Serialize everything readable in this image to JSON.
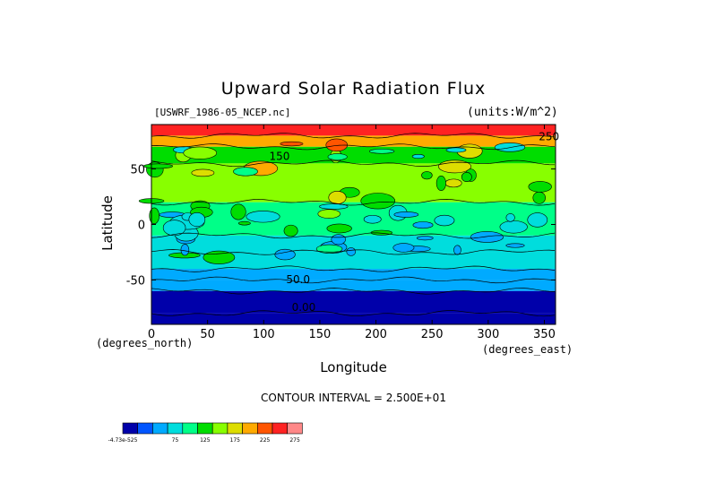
{
  "chart_data": {
    "type": "heatmap",
    "title": "Upward Solar Radiation Flux",
    "source_label": "[USWRF_1986-05_NCEP.nc]",
    "units_label": "(units:W/m^2)",
    "xlabel": "Longitude",
    "ylabel": "Latitude",
    "x_units": "(degrees_east)",
    "y_units": "(degrees_north)",
    "xlim": [
      0,
      360
    ],
    "ylim": [
      -90,
      90
    ],
    "x_ticks": [
      0,
      50,
      100,
      150,
      200,
      250,
      300,
      350
    ],
    "y_ticks": [
      50,
      0,
      -50
    ],
    "contour_interval_text": "CONTOUR INTERVAL = 2.500E+01",
    "contour_labels": [
      "50.0",
      "0.00",
      "150",
      "250"
    ],
    "colorbar_labels": [
      "-4.73e-525",
      "75",
      "125",
      "175",
      "225",
      "275"
    ],
    "colorbar_colors": [
      "#0000aa",
      "#0055ff",
      "#00aaff",
      "#00dddd",
      "#00ff88",
      "#00dd00",
      "#88ff00",
      "#dddd00",
      "#ffaa00",
      "#ff5500",
      "#ff2222",
      "#ff8888"
    ],
    "latitude_bands": [
      {
        "lat": [
          80,
          90
        ],
        "value": 262
      },
      {
        "lat": [
          70,
          80
        ],
        "value": 215
      },
      {
        "lat": [
          55,
          70
        ],
        "value": 135
      },
      {
        "lat": [
          20,
          55
        ],
        "value": 150
      },
      {
        "lat": [
          -10,
          20
        ],
        "value": 115
      },
      {
        "lat": [
          -25,
          -10
        ],
        "value": 90
      },
      {
        "lat": [
          -40,
          -25
        ],
        "value": 75
      },
      {
        "lat": [
          -50,
          -40
        ],
        "value": 70
      },
      {
        "lat": [
          -60,
          -50
        ],
        "value": 50
      },
      {
        "lat": [
          -80,
          -60
        ],
        "value": 20
      },
      {
        "lat": [
          -90,
          -80
        ],
        "value": 0
      }
    ]
  }
}
